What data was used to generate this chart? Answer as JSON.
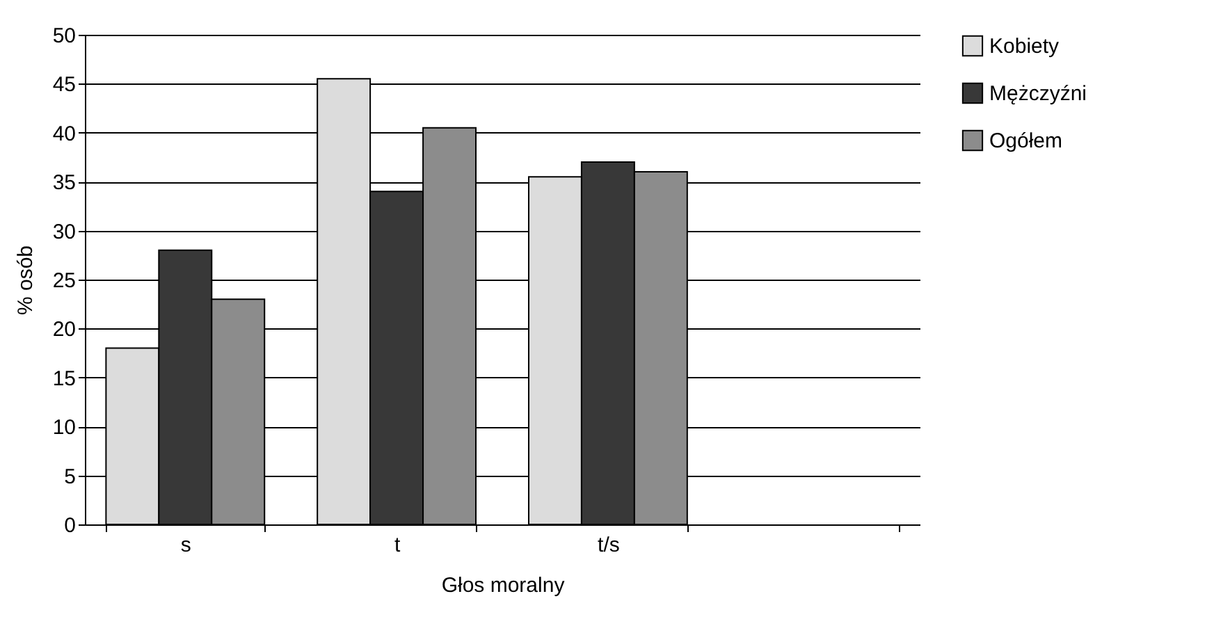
{
  "chart_data": {
    "type": "bar",
    "xlabel": "Głos moralny",
    "ylabel": "% osób",
    "categories": [
      "s",
      "t",
      "t/s",
      null
    ],
    "series": [
      {
        "name": "Kobiety",
        "color": "#dcdcdc",
        "values": [
          18,
          45.5,
          35.5,
          null
        ]
      },
      {
        "name": "Mężczyźni",
        "color": "#383838",
        "values": [
          28,
          34,
          37,
          null
        ]
      },
      {
        "name": "Ogółem",
        "color": "#8c8c8c",
        "values": [
          23,
          40.5,
          36,
          null
        ]
      }
    ],
    "ylim": [
      0,
      50
    ],
    "yticks": [
      0,
      5,
      10,
      15,
      20,
      25,
      30,
      35,
      40,
      45,
      50
    ],
    "grid": "y",
    "legend": "right"
  }
}
